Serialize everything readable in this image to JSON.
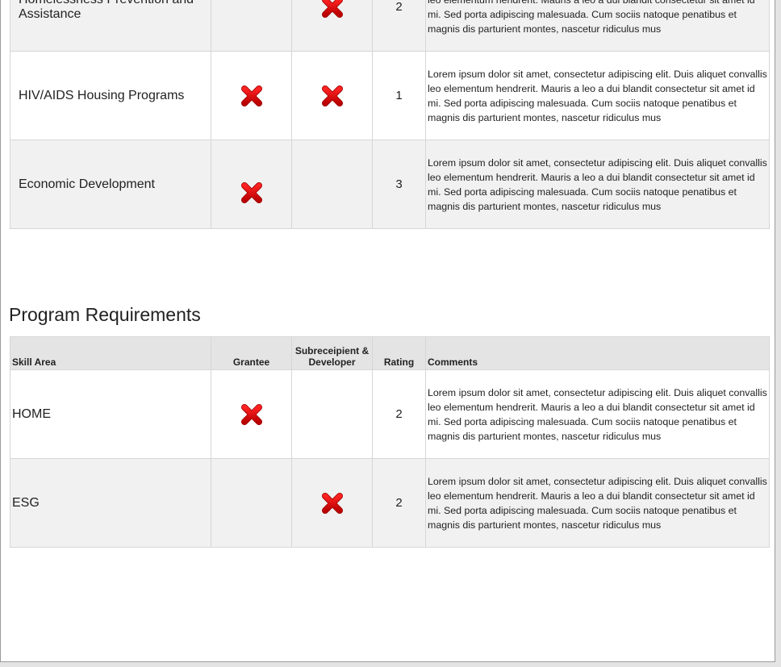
{
  "table1": {
    "rows": [
      {
        "area": "Homelessness Prevention and Assistance",
        "grantee": false,
        "subrecipient": true,
        "rating": "2",
        "comment": "Lorem ipsum dolor sit amet, consectetur adipiscing elit. Duis aliquet convallis leo elementum hendrerit. Mauris a leo a dui blandit consectetur sit amet id mi. Sed porta adipiscing malesuada. Cum sociis natoque penatibus et magnis dis parturient montes, nascetur ridiculus mus"
      },
      {
        "area": "HIV/AIDS Housing Programs",
        "grantee": true,
        "subrecipient": true,
        "rating": "1",
        "comment": "Lorem ipsum dolor sit amet, consectetur adipiscing elit. Duis aliquet convallis leo elementum hendrerit. Mauris a leo a dui blandit consectetur sit amet id mi. Sed porta adipiscing malesuada. Cum sociis natoque penatibus et magnis dis parturient montes, nascetur ridiculus mus"
      },
      {
        "area": "Economic Development",
        "grantee": true,
        "subrecipient": false,
        "rating": "3",
        "comment": "Lorem ipsum dolor sit amet, consectetur adipiscing elit. Duis aliquet convallis leo elementum hendrerit. Mauris a leo a dui blandit consectetur sit amet id mi. Sed porta adipiscing malesuada. Cum sociis natoque penatibus et magnis dis parturient montes, nascetur ridiculus mus"
      }
    ]
  },
  "section2": {
    "title": "Program Requirements",
    "headers": {
      "area": "Skill Area",
      "grantee": "Grantee",
      "subrecipient": "Subreceipient & Developer",
      "rating": "Rating",
      "comments": "Comments"
    },
    "rows": [
      {
        "area": "HOME",
        "grantee": true,
        "subrecipient": false,
        "rating": "2",
        "comment": "Lorem ipsum dolor sit amet, consectetur adipiscing elit. Duis aliquet convallis leo elementum hendrerit. Mauris a leo a dui blandit consectetur sit amet id mi. Sed porta adipiscing malesuada. Cum sociis natoque penatibus et magnis dis parturient montes, nascetur ridiculus mus"
      },
      {
        "area": "ESG",
        "grantee": false,
        "subrecipient": true,
        "rating": "2",
        "comment": "Lorem ipsum dolor sit amet, consectetur adipiscing elit. Duis aliquet convallis leo elementum hendrerit. Mauris a leo a dui blandit consectetur sit amet id mi. Sed porta adipiscing malesuada. Cum sociis natoque penatibus et magnis dis parturient montes, nascetur ridiculus mus"
      }
    ]
  },
  "icons": {
    "mark": "red-x-icon",
    "color": "#d40000"
  }
}
